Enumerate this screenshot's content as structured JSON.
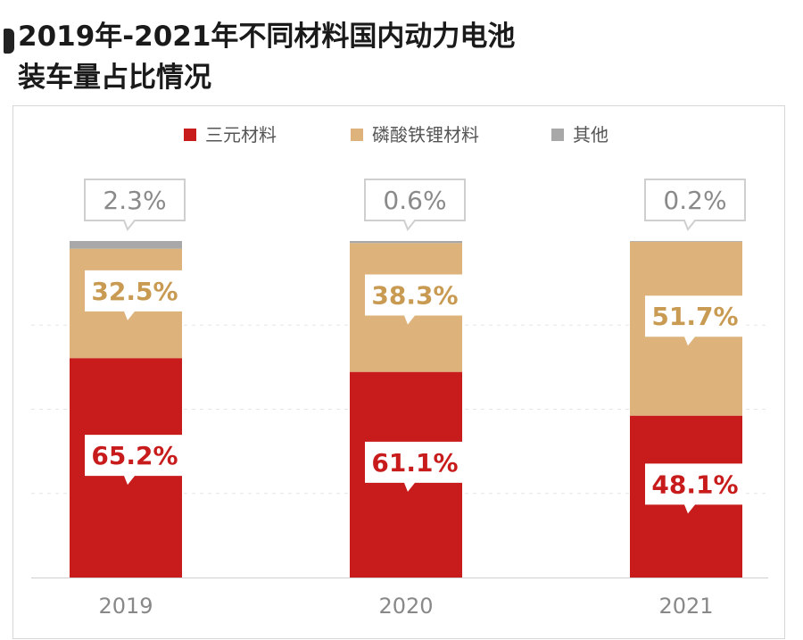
{
  "title_line1": "2019年-2021年不同材料国内动力电池",
  "title_line2": "装车量占比情况",
  "colors": {
    "ternary": "#c81c1c",
    "lfp": "#ddb37b",
    "other": "#a8a8a8",
    "ternary_label": "#c81c1c",
    "lfp_label": "#c99a52",
    "other_label": "#8a8a8a",
    "axis_label": "#888888"
  },
  "chart_data": {
    "type": "bar",
    "stacked": true,
    "categories": [
      "2019",
      "2020",
      "2021"
    ],
    "series": [
      {
        "name": "三元材料",
        "values": [
          65.2,
          61.1,
          48.1
        ],
        "labels": [
          "65.2%",
          "61.1%",
          "48.1%"
        ]
      },
      {
        "name": "磷酸铁锂材料",
        "values": [
          32.5,
          38.3,
          51.7
        ],
        "labels": [
          "32.5%",
          "38.3%",
          "51.7%"
        ]
      },
      {
        "name": "其他",
        "values": [
          2.3,
          0.6,
          0.2
        ],
        "labels": [
          "2.3%",
          "0.6%",
          "0.2%"
        ]
      }
    ],
    "ylim": [
      0,
      100
    ],
    "legend_position": "top",
    "grid": true
  }
}
